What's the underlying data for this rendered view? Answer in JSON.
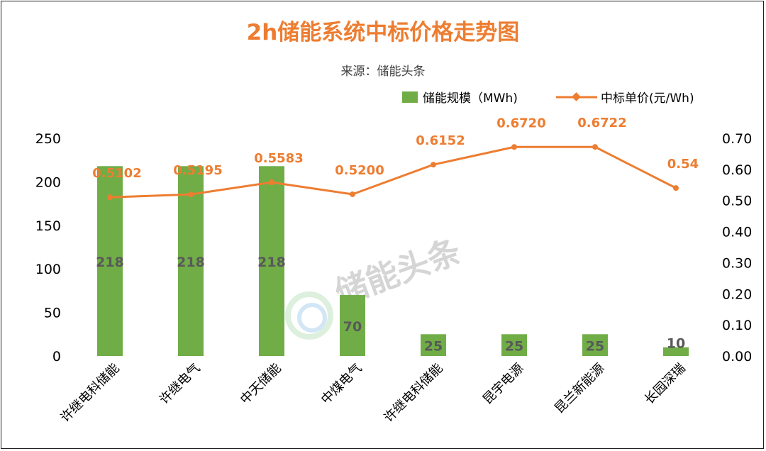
{
  "chart_data": {
    "type": "bar+line",
    "title": "2h储能系统中标价格走势图",
    "subtitle": "来源：储能头条",
    "watermark": "储能头条",
    "categories": [
      "许继电科储能",
      "许继电气",
      "中天储能",
      "中煤电气",
      "许继电科储能",
      "昆宇电源",
      "昆兰新能源",
      "长园深瑞"
    ],
    "series": [
      {
        "name": "储能规模（MWh)",
        "type": "bar",
        "axis": "left",
        "color": "#70AD47",
        "values": [
          218,
          218,
          218,
          70,
          25,
          25,
          25,
          10
        ],
        "labels": [
          "218",
          "218",
          "218",
          "70",
          "25",
          "25",
          "25",
          "10"
        ]
      },
      {
        "name": "中标单价(元/Wh)",
        "type": "line",
        "axis": "right",
        "color": "#ED7D31",
        "values": [
          0.5102,
          0.5195,
          0.5583,
          0.52,
          0.6152,
          0.672,
          0.6722,
          0.54
        ],
        "labels": [
          "0.5102",
          "0.5195",
          "0.5583",
          "0.5200",
          "0.6152",
          "0.6720",
          "0.6722",
          "0.54"
        ]
      }
    ],
    "ylim_left": [
      0,
      250
    ],
    "yticks_left": [
      "0",
      "50",
      "100",
      "150",
      "200",
      "250"
    ],
    "ylim_right": [
      0,
      0.7
    ],
    "yticks_right": [
      "0.00",
      "0.10",
      "0.20",
      "0.30",
      "0.40",
      "0.50",
      "0.60",
      "0.70"
    ],
    "grid": false,
    "legend": "top-right"
  }
}
